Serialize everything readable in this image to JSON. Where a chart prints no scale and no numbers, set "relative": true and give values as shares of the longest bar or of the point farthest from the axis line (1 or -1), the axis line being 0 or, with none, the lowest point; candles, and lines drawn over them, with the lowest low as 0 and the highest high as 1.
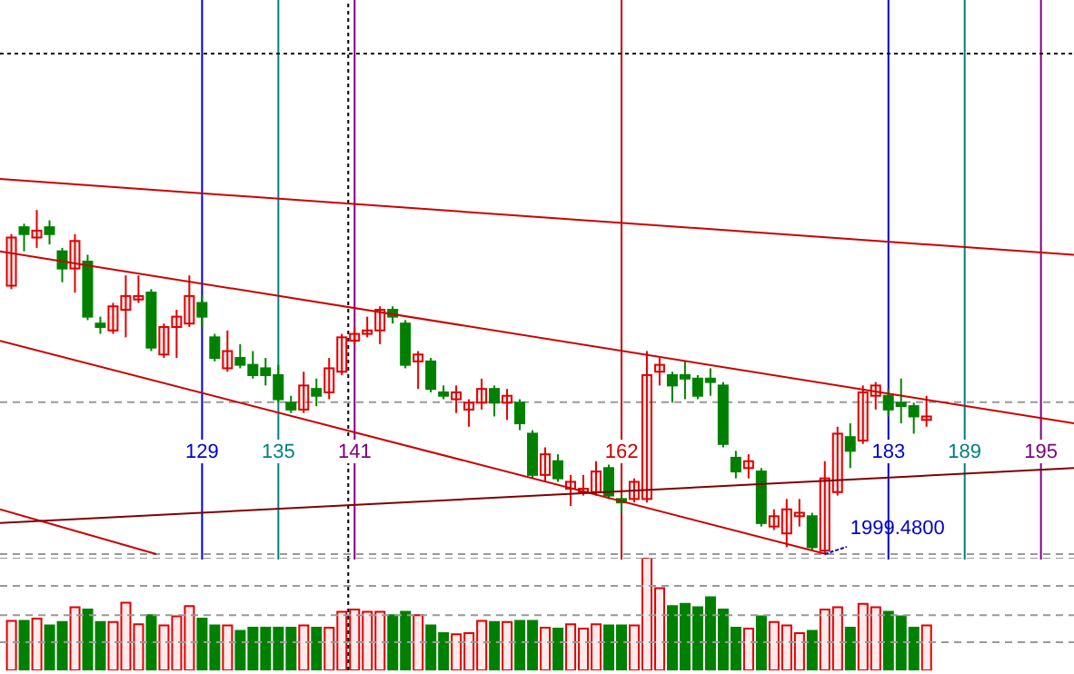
{
  "chart_data": [
    {
      "type": "candlestick",
      "relative": true,
      "tick_labels": "x",
      "xlim": [
        113.1,
        197.6
      ],
      "xticks": [
        129,
        135,
        141,
        162,
        183,
        189,
        195
      ],
      "x": [
        114,
        115,
        116,
        117,
        118,
        119,
        120,
        121,
        122,
        123,
        124,
        125,
        126,
        127,
        128,
        129,
        130,
        131,
        132,
        133,
        134,
        135,
        136,
        137,
        138,
        139,
        140,
        141,
        142,
        143,
        144,
        145,
        146,
        147,
        148,
        149,
        150,
        151,
        152,
        153,
        154,
        155,
        156,
        157,
        158,
        159,
        160,
        161,
        162,
        163,
        164,
        165,
        166,
        167,
        168,
        169,
        170,
        171,
        172,
        173,
        174,
        175,
        176,
        177,
        178,
        179,
        180,
        181,
        182,
        183,
        184,
        185,
        186
      ],
      "ohlc": [
        [
          0.78,
          0.93,
          0.77,
          0.92
        ],
        [
          0.95,
          0.96,
          0.88,
          0.93
        ],
        [
          0.92,
          1,
          0.89,
          0.94
        ],
        [
          0.95,
          0.97,
          0.9,
          0.93
        ],
        [
          0.88,
          0.89,
          0.79,
          0.83
        ],
        [
          0.83,
          0.93,
          0.76,
          0.91
        ],
        [
          0.85,
          0.87,
          0.68,
          0.69
        ],
        [
          0.67,
          0.69,
          0.64,
          0.66
        ],
        [
          0.65,
          0.73,
          0.64,
          0.72
        ],
        [
          0.71,
          0.81,
          0.63,
          0.75
        ],
        [
          0.74,
          0.81,
          0.73,
          0.75
        ],
        [
          0.76,
          0.77,
          0.59,
          0.6
        ],
        [
          0.58,
          0.67,
          0.57,
          0.66
        ],
        [
          0.66,
          0.71,
          0.57,
          0.69
        ],
        [
          0.67,
          0.81,
          0.66,
          0.75
        ],
        [
          0.73,
          0.75,
          0.66,
          0.69
        ],
        [
          0.63,
          0.64,
          0.56,
          0.57
        ],
        [
          0.54,
          0.65,
          0.53,
          0.59
        ],
        [
          0.57,
          0.61,
          0.54,
          0.55
        ],
        [
          0.55,
          0.59,
          0.51,
          0.52
        ],
        [
          0.54,
          0.57,
          0.49,
          0.52
        ],
        [
          0.52,
          0.55,
          0.44,
          0.45
        ],
        [
          0.44,
          0.46,
          0.41,
          0.42
        ],
        [
          0.42,
          0.53,
          0.41,
          0.49
        ],
        [
          0.48,
          0.51,
          0.43,
          0.46
        ],
        [
          0.47,
          0.57,
          0.45,
          0.54
        ],
        [
          0.53,
          0.64,
          0.52,
          0.63
        ],
        [
          0.62,
          0.66,
          0.61,
          0.64
        ],
        [
          0.64,
          0.69,
          0.63,
          0.65
        ],
        [
          0.65,
          0.72,
          0.61,
          0.71
        ],
        [
          0.71,
          0.72,
          0.67,
          0.69
        ],
        [
          0.67,
          0.68,
          0.54,
          0.55
        ],
        [
          0.56,
          0.59,
          0.48,
          0.58
        ],
        [
          0.56,
          0.57,
          0.47,
          0.48
        ],
        [
          0.47,
          0.49,
          0.45,
          0.46
        ],
        [
          0.45,
          0.49,
          0.41,
          0.47
        ],
        [
          0.42,
          0.45,
          0.37,
          0.44
        ],
        [
          0.44,
          0.51,
          0.42,
          0.48
        ],
        [
          0.48,
          0.49,
          0.4,
          0.44
        ],
        [
          0.44,
          0.48,
          0.39,
          0.46
        ],
        [
          0.44,
          0.45,
          0.36,
          0.38
        ],
        [
          0.35,
          0.36,
          0.22,
          0.23
        ],
        [
          0.23,
          0.31,
          0.21,
          0.29
        ],
        [
          0.27,
          0.29,
          0.21,
          0.22
        ],
        [
          0.19,
          0.23,
          0.14,
          0.21
        ],
        [
          0.18,
          0.23,
          0.17,
          0.19
        ],
        [
          0.18,
          0.27,
          0.17,
          0.24
        ],
        [
          0.25,
          0.26,
          0.16,
          0.17
        ],
        [
          0.16,
          0.17,
          0.12,
          0.15
        ],
        [
          0.16,
          0.22,
          0.15,
          0.21
        ],
        [
          0.16,
          0.59,
          0.15,
          0.52
        ],
        [
          0.53,
          0.57,
          0.49,
          0.55
        ],
        [
          0.52,
          0.53,
          0.44,
          0.49
        ],
        [
          0.52,
          0.56,
          0.45,
          0.51
        ],
        [
          0.51,
          0.52,
          0.45,
          0.46
        ],
        [
          0.51,
          0.54,
          0.46,
          0.5
        ],
        [
          0.49,
          0.5,
          0.31,
          0.32
        ],
        [
          0.28,
          0.3,
          0.22,
          0.24
        ],
        [
          0.25,
          0.29,
          0.22,
          0.27
        ],
        [
          0.24,
          0.25,
          0.08,
          0.09
        ],
        [
          0.08,
          0.13,
          0.07,
          0.11
        ],
        [
          0.06,
          0.16,
          0.02,
          0.13
        ],
        [
          0.11,
          0.16,
          0.08,
          0.12
        ],
        [
          0.11,
          0.12,
          0.01,
          0.02
        ],
        [
          0.01,
          0.27,
          0,
          0.22
        ],
        [
          0.18,
          0.37,
          0.17,
          0.35
        ],
        [
          0.34,
          0.38,
          0.25,
          0.3
        ],
        [
          0.33,
          0.49,
          0.32,
          0.47
        ],
        [
          0.46,
          0.5,
          0.42,
          0.49
        ],
        [
          0.46,
          0.48,
          0.4,
          0.42
        ],
        [
          0.44,
          0.51,
          0.38,
          0.43
        ],
        [
          0.43,
          0.44,
          0.35,
          0.4
        ],
        [
          0.39,
          0.46,
          0.37,
          0.4
        ]
      ],
      "colors": [
        "#e00000",
        "#008000",
        "#e00000",
        "#008000",
        "#008000",
        "#e00000",
        "#008000",
        "#008000",
        "#e00000",
        "#e00000",
        "#e00000",
        "#008000",
        "#e00000",
        "#e00000",
        "#e00000",
        "#008000",
        "#008000",
        "#e00000",
        "#008000",
        "#008000",
        "#008000",
        "#008000",
        "#008000",
        "#e00000",
        "#008000",
        "#e00000",
        "#e00000",
        "#e00000",
        "#e00000",
        "#e00000",
        "#008000",
        "#008000",
        "#e00000",
        "#008000",
        "#008000",
        "#e00000",
        "#e00000",
        "#e00000",
        "#008000",
        "#e00000",
        "#008000",
        "#008000",
        "#e00000",
        "#008000",
        "#e00000",
        "#e00000",
        "#e00000",
        "#008000",
        "#008000",
        "#e00000",
        "#e00000",
        "#e00000",
        "#008000",
        "#008000",
        "#008000",
        "#008000",
        "#008000",
        "#008000",
        "#e00000",
        "#008000",
        "#e00000",
        "#e00000",
        "#e00000",
        "#008000",
        "#e00000",
        "#e00000",
        "#008000",
        "#e00000",
        "#e00000",
        "#008000",
        "#008000",
        "#008000",
        "#e00000"
      ],
      "series": [
        {
          "type": "line",
          "x": [
            113.1,
            197.6
          ],
          "values": [
            1.09,
            0.87
          ],
          "color": "#cc0000"
        },
        {
          "type": "line",
          "x": [
            113.1,
            197.6
          ],
          "values": [
            0.88,
            0.38
          ],
          "color": "#cc0000"
        },
        {
          "type": "line",
          "x": [
            113.1,
            178.1
          ],
          "values": [
            0.62,
            0
          ],
          "color": "#cc0000"
        },
        {
          "type": "line",
          "x": [
            113.1,
            125.4
          ],
          "values": [
            0.13,
            0
          ],
          "color": "#cc0000"
        },
        {
          "type": "line",
          "x": [
            113.1,
            197.6
          ],
          "values": [
            0.09,
            0.25
          ],
          "color": "#800000"
        }
      ],
      "ref_lines": [
        {
          "axis": "x",
          "value": 129,
          "color": "#0000cc"
        },
        {
          "axis": "x",
          "value": 135,
          "color": "#008080"
        },
        {
          "axis": "x",
          "value": 141,
          "color": "#800080"
        },
        {
          "axis": "x",
          "value": 162,
          "color": "#cc0000"
        },
        {
          "axis": "x",
          "value": 183,
          "color": "#0000cc"
        },
        {
          "axis": "x",
          "value": 189,
          "color": "#008080"
        },
        {
          "axis": "x",
          "value": 195,
          "color": "#800080"
        },
        {
          "axis": "x",
          "value": 140.5,
          "color": "#000000",
          "line_style": "dotted"
        },
        {
          "axis": "y",
          "value": 1.45,
          "color": "#000000",
          "line_style": "dotted"
        },
        {
          "axis": "y",
          "value": 0.44,
          "color": "#999999",
          "line_style": "dashed"
        },
        {
          "axis": "y",
          "value": 0,
          "color": "#999999",
          "line_style": "dashed"
        }
      ],
      "annotations": [
        {
          "text": "1999.4800",
          "x": 178,
          "y": 0
        }
      ]
    },
    {
      "type": "bar",
      "relative": true,
      "tick_labels": false,
      "xlim": [
        113.1,
        197.6
      ],
      "x": [
        114,
        115,
        116,
        117,
        118,
        119,
        120,
        121,
        122,
        123,
        124,
        125,
        126,
        127,
        128,
        129,
        130,
        131,
        132,
        133,
        134,
        135,
        136,
        137,
        138,
        139,
        140,
        141,
        142,
        143,
        144,
        145,
        146,
        147,
        148,
        149,
        150,
        151,
        152,
        153,
        154,
        155,
        156,
        157,
        158,
        159,
        160,
        161,
        162,
        163,
        164,
        165,
        166,
        167,
        168,
        169,
        170,
        171,
        172,
        173,
        174,
        175,
        176,
        177,
        178,
        179,
        180,
        181,
        182,
        183,
        184,
        185,
        186
      ],
      "values": [
        0.44,
        0.44,
        0.46,
        0.4,
        0.43,
        0.56,
        0.54,
        0.43,
        0.43,
        0.6,
        0.41,
        0.49,
        0.4,
        0.48,
        0.57,
        0.46,
        0.4,
        0.4,
        0.35,
        0.38,
        0.38,
        0.38,
        0.38,
        0.4,
        0.38,
        0.38,
        0.52,
        0.54,
        0.52,
        0.52,
        0.49,
        0.52,
        0.49,
        0.4,
        0.33,
        0.32,
        0.33,
        0.44,
        0.43,
        0.43,
        0.44,
        0.44,
        0.38,
        0.37,
        0.41,
        0.37,
        0.41,
        0.4,
        0.4,
        0.4,
        1,
        0.73,
        0.57,
        0.59,
        0.56,
        0.65,
        0.54,
        0.38,
        0.37,
        0.48,
        0.43,
        0.4,
        0.33,
        0.35,
        0.54,
        0.56,
        0.38,
        0.59,
        0.56,
        0.52,
        0.48,
        0.38,
        0.4
      ],
      "colors": [
        "#e00000",
        "#008000",
        "#e00000",
        "#008000",
        "#008000",
        "#e00000",
        "#008000",
        "#008000",
        "#e00000",
        "#e00000",
        "#e00000",
        "#008000",
        "#e00000",
        "#e00000",
        "#e00000",
        "#008000",
        "#008000",
        "#e00000",
        "#008000",
        "#008000",
        "#008000",
        "#008000",
        "#008000",
        "#e00000",
        "#008000",
        "#e00000",
        "#e00000",
        "#e00000",
        "#e00000",
        "#e00000",
        "#008000",
        "#008000",
        "#e00000",
        "#008000",
        "#008000",
        "#e00000",
        "#e00000",
        "#e00000",
        "#008000",
        "#e00000",
        "#008000",
        "#008000",
        "#e00000",
        "#008000",
        "#e00000",
        "#e00000",
        "#e00000",
        "#008000",
        "#008000",
        "#e00000",
        "#e00000",
        "#e00000",
        "#008000",
        "#008000",
        "#008000",
        "#008000",
        "#008000",
        "#008000",
        "#e00000",
        "#008000",
        "#e00000",
        "#e00000",
        "#e00000",
        "#008000",
        "#e00000",
        "#e00000",
        "#008000",
        "#e00000",
        "#e00000",
        "#008000",
        "#008000",
        "#008000",
        "#e00000"
      ],
      "ref_lines": [
        {
          "axis": "x",
          "value": 140.5,
          "color": "#000000",
          "line_style": "dotted"
        },
        {
          "axis": "y",
          "value": 1,
          "color": "#999999",
          "line_style": "dashed"
        },
        {
          "axis": "y",
          "value": 0.75,
          "color": "#999999",
          "line_style": "dashed"
        },
        {
          "axis": "y",
          "value": 0.49,
          "color": "#999999",
          "line_style": "dashed"
        },
        {
          "axis": "y",
          "value": 0.25,
          "color": "#999999",
          "line_style": "dashed"
        }
      ]
    }
  ]
}
